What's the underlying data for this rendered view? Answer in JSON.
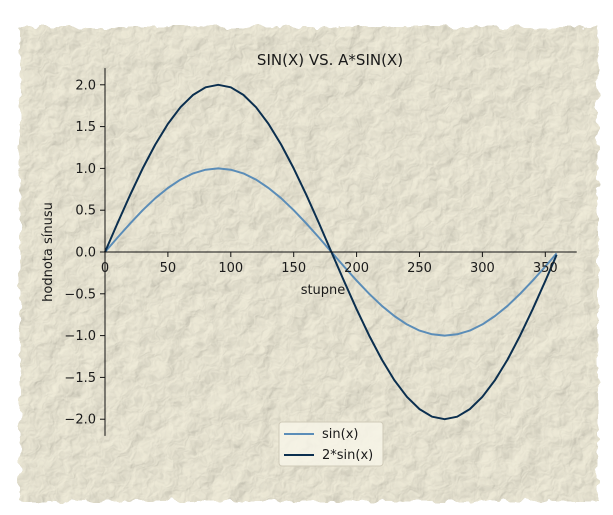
{
  "chart_data": {
    "type": "line",
    "title": "SIN(X) VS. A*SIN(X)",
    "xlabel": "stupne",
    "ylabel": "hodnota sínusu",
    "xlim": [
      0,
      375
    ],
    "ylim": [
      -2.2,
      2.2
    ],
    "x_ticks": [
      0,
      50,
      100,
      150,
      200,
      250,
      300,
      350
    ],
    "y_ticks": [
      2.0,
      1.5,
      1.0,
      0.5,
      0.0,
      -0.5,
      -1.0,
      -1.5,
      -2.0
    ],
    "x_tick_labels": [
      "0",
      "50",
      "100",
      "150",
      "200",
      "250",
      "300",
      "350"
    ],
    "y_tick_labels": [
      "2.0",
      "1.5",
      "1.0",
      "0.5",
      "0.0",
      "−0.5",
      "−1.0",
      "−1.5",
      "−2.0"
    ],
    "x": [
      0,
      10,
      20,
      30,
      40,
      50,
      60,
      70,
      80,
      90,
      100,
      110,
      120,
      130,
      140,
      150,
      160,
      170,
      180,
      190,
      200,
      210,
      220,
      230,
      240,
      250,
      260,
      270,
      280,
      290,
      300,
      310,
      320,
      330,
      340,
      350,
      359
    ],
    "series": [
      {
        "name": "sin(x)",
        "color": "#5b8db8",
        "values": [
          0,
          0.174,
          0.342,
          0.5,
          0.643,
          0.766,
          0.866,
          0.94,
          0.985,
          1.0,
          0.985,
          0.94,
          0.866,
          0.766,
          0.643,
          0.5,
          0.342,
          0.174,
          0,
          -0.174,
          -0.342,
          -0.5,
          -0.643,
          -0.766,
          -0.866,
          -0.94,
          -0.985,
          -1.0,
          -0.985,
          -0.94,
          -0.866,
          -0.766,
          -0.643,
          -0.5,
          -0.342,
          -0.174,
          -0.017
        ]
      },
      {
        "name": "2*sin(x)",
        "color": "#0b2f4f",
        "values": [
          0,
          0.347,
          0.684,
          1.0,
          1.286,
          1.532,
          1.732,
          1.879,
          1.97,
          2.0,
          1.97,
          1.879,
          1.732,
          1.532,
          1.286,
          1.0,
          0.684,
          0.347,
          0,
          -0.347,
          -0.684,
          -1.0,
          -1.286,
          -1.532,
          -1.732,
          -1.879,
          -1.97,
          -2.0,
          -1.97,
          -1.879,
          -1.732,
          -1.532,
          -1.286,
          -1.0,
          -0.684,
          -0.347,
          -0.035
        ]
      }
    ],
    "legend_position": "bottom-center",
    "grid": false,
    "background": "textured paper"
  }
}
